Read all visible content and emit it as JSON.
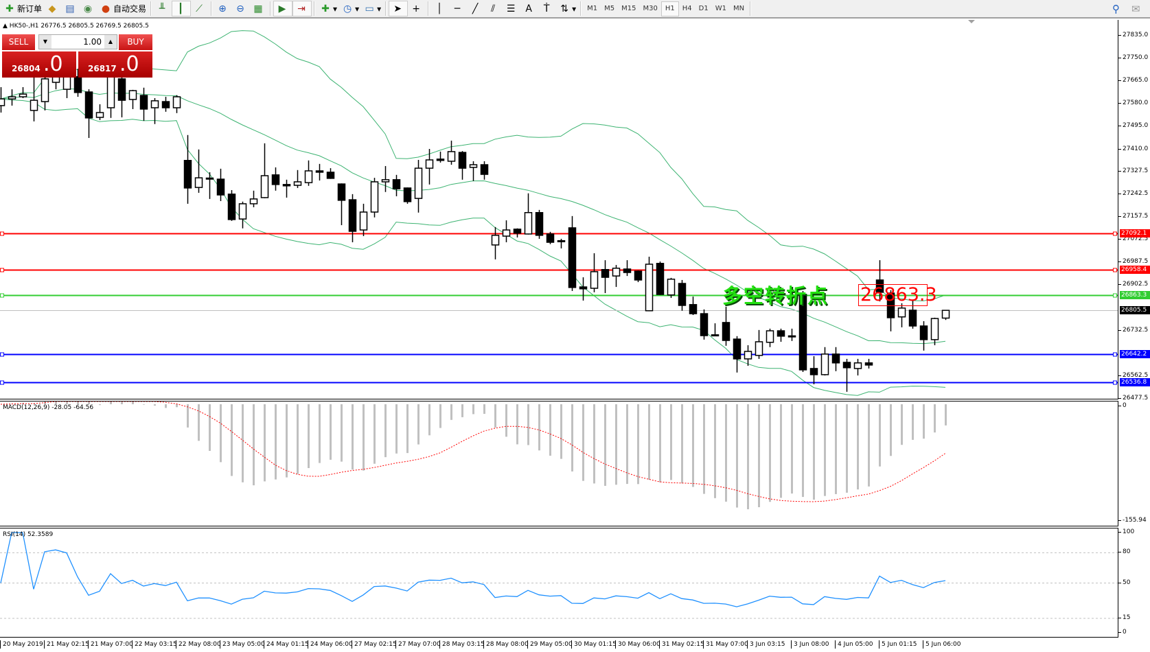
{
  "toolbar": {
    "new_order": "新订单",
    "auto_trade": "自动交易",
    "periods": [
      "M1",
      "M5",
      "M15",
      "M30",
      "H1",
      "H4",
      "D1",
      "W1",
      "MN"
    ],
    "active_period": "H1"
  },
  "chart": {
    "symbol_line": "HK50-,H1  26776.5 26805.5 26769.5 26805.5",
    "price_axis": [
      "27835.0",
      "27750.0",
      "27665.0",
      "27580.0",
      "27495.0",
      "27410.0",
      "27327.5",
      "27242.5",
      "27157.5",
      "27072.5",
      "26987.5",
      "26902.5",
      "26732.5",
      "26562.5",
      "26477.5"
    ],
    "hlines": [
      {
        "price": "27092.1",
        "color": "#ff0000"
      },
      {
        "price": "26958.4",
        "color": "#ff0000"
      },
      {
        "price": "26863.3",
        "color": "#32cd32"
      },
      {
        "price": "26642.2",
        "color": "#0000ff"
      },
      {
        "price": "26536.8",
        "color": "#0000ff"
      }
    ],
    "current_price": "26805.5",
    "annotation": "多空转折点",
    "price_label": "26863.3",
    "bull_color": "#ffffff",
    "bear_color": "#000000",
    "band_color": "#3cb371",
    "time_labels": [
      "20 May 2019",
      "21 May 02:15",
      "21 May 07:00",
      "22 May 03:15",
      "22 May 08:00",
      "23 May 05:00",
      "24 May 01:15",
      "24 May 06:00",
      "27 May 02:15",
      "27 May 07:00",
      "28 May 03:15",
      "28 May 08:00",
      "29 May 05:00",
      "30 May 01:15",
      "30 May 06:00",
      "31 May 02:15",
      "31 May 07:00",
      "3 Jun 03:15",
      "3 Jun 08:00",
      "4 Jun 05:00",
      "5 Jun 01:15",
      "5 Jun 06:00"
    ]
  },
  "trade_panel": {
    "sell_label": "SELL",
    "buy_label": "BUY",
    "lot": "1.00",
    "sell_price_main": "26804",
    "sell_price_big": ".0",
    "buy_price_main": "26817",
    "buy_price_big": ".0"
  },
  "macd": {
    "label": "MACD(12,26,9) -28.05 -64.56",
    "axis_top": "0",
    "axis_bottom": "-155.94"
  },
  "rsi": {
    "label": "RSI(14) 52.3589",
    "levels": [
      "100",
      "80",
      "50",
      "15",
      "0"
    ]
  },
  "chart_data": {
    "type": "candlestick",
    "ylim": [
      26477.5,
      27835.0
    ],
    "candles_ohlc": [
      [
        27571,
        27640,
        27545,
        27596
      ],
      [
        27596,
        27632,
        27571,
        27604
      ],
      [
        27604,
        27640,
        27599,
        27614
      ],
      [
        27553,
        27684,
        27512,
        27591
      ],
      [
        27586,
        27697,
        27553,
        27671
      ],
      [
        27658,
        27709,
        27632,
        27684
      ],
      [
        27632,
        27709,
        27599,
        27679
      ],
      [
        27679,
        27709,
        27604,
        27620
      ],
      [
        27622,
        27632,
        27450,
        27525
      ],
      [
        27527,
        27576,
        27517,
        27545
      ],
      [
        27563,
        27697,
        27525,
        27679
      ],
      [
        27671,
        27689,
        27527,
        27591
      ],
      [
        27594,
        27630,
        27558,
        27627
      ],
      [
        27609,
        27638,
        27514,
        27558
      ],
      [
        27563,
        27599,
        27502,
        27589
      ],
      [
        27586,
        27604,
        27548,
        27563
      ],
      [
        27563,
        27610,
        27543,
        27604
      ],
      [
        27366,
        27461,
        27204,
        27263
      ],
      [
        27265,
        27407,
        27245,
        27301
      ],
      [
        27299,
        27322,
        27222,
        27300
      ],
      [
        27296,
        27335,
        27214,
        27237
      ],
      [
        27240,
        27255,
        27140,
        27145
      ],
      [
        27147,
        27212,
        27112,
        27204
      ],
      [
        27204,
        27253,
        27191,
        27222
      ],
      [
        27227,
        27430,
        27225,
        27309
      ],
      [
        27312,
        27340,
        27253,
        27276
      ],
      [
        27276,
        27294,
        27227,
        27271
      ],
      [
        27273,
        27330,
        27263,
        27286
      ],
      [
        27283,
        27366,
        27271,
        27327
      ],
      [
        27327,
        27353,
        27291,
        27322
      ],
      [
        27322,
        27337,
        27297,
        27299
      ],
      [
        27278,
        27280,
        27124,
        27217
      ],
      [
        27219,
        27240,
        27060,
        27101
      ],
      [
        27106,
        27204,
        27083,
        27173
      ],
      [
        27173,
        27301,
        27153,
        27286
      ],
      [
        27286,
        27345,
        27248,
        27294
      ],
      [
        27294,
        27312,
        27232,
        27260
      ],
      [
        27263,
        27265,
        27204,
        27212
      ],
      [
        27224,
        27368,
        27171,
        27337
      ],
      [
        27337,
        27409,
        27276,
        27368
      ],
      [
        27371,
        27399,
        27358,
        27366
      ],
      [
        27363,
        27440,
        27350,
        27399
      ],
      [
        27396,
        27401,
        27294,
        27337
      ],
      [
        27340,
        27363,
        27289,
        27350
      ],
      [
        27350,
        27363,
        27294,
        27314
      ],
      [
        27050,
        27117,
        26996,
        27086
      ],
      [
        27083,
        27142,
        27060,
        27106
      ],
      [
        27109,
        27112,
        27078,
        27094
      ],
      [
        27091,
        27243,
        27089,
        27171
      ],
      [
        27171,
        27181,
        27073,
        27086
      ],
      [
        27091,
        27099,
        27053,
        27060
      ],
      [
        27065,
        27073,
        27037,
        27066
      ],
      [
        27114,
        27158,
        26878,
        26891
      ],
      [
        26893,
        26929,
        26842,
        26886
      ],
      [
        26888,
        27019,
        26873,
        26950
      ],
      [
        26958,
        26993,
        26870,
        26929
      ],
      [
        26934,
        26975,
        26893,
        26963
      ],
      [
        26960,
        26993,
        26934,
        26947
      ],
      [
        26952,
        26955,
        26911,
        26919
      ],
      [
        26804,
        27006,
        26802,
        26978
      ],
      [
        26981,
        26988,
        26863,
        26865
      ],
      [
        26863,
        26927,
        26852,
        26922
      ],
      [
        26906,
        26919,
        26804,
        26824
      ],
      [
        26827,
        26857,
        26788,
        26793
      ],
      [
        26793,
        26809,
        26696,
        26711
      ],
      [
        26714,
        26757,
        26709,
        26713
      ],
      [
        26760,
        26819,
        26673,
        26693
      ],
      [
        26698,
        26709,
        26573,
        26624
      ],
      [
        26624,
        26675,
        26598,
        26652
      ],
      [
        26637,
        26732,
        26624,
        26688
      ],
      [
        26686,
        26737,
        26668,
        26729
      ],
      [
        26729,
        26737,
        26688,
        26709
      ],
      [
        26709,
        26737,
        26691,
        26710
      ],
      [
        26863,
        26878,
        26575,
        26583
      ],
      [
        26588,
        26634,
        26529,
        26565
      ],
      [
        26565,
        26668,
        26562,
        26642
      ],
      [
        26642,
        26668,
        26578,
        26609
      ],
      [
        26611,
        26624,
        26501,
        26591
      ],
      [
        26588,
        26624,
        26562,
        26609
      ],
      [
        26609,
        26624,
        26588,
        26601
      ],
      [
        26919,
        26993,
        26839,
        26873
      ],
      [
        26870,
        26881,
        26727,
        26778
      ],
      [
        26781,
        26832,
        26742,
        26814
      ],
      [
        26806,
        26845,
        26737,
        26747
      ],
      [
        26747,
        26765,
        26655,
        26696
      ],
      [
        26696,
        26778,
        26675,
        26775
      ],
      [
        26776.5,
        26805.5,
        26769.5,
        26805.5
      ]
    ]
  }
}
